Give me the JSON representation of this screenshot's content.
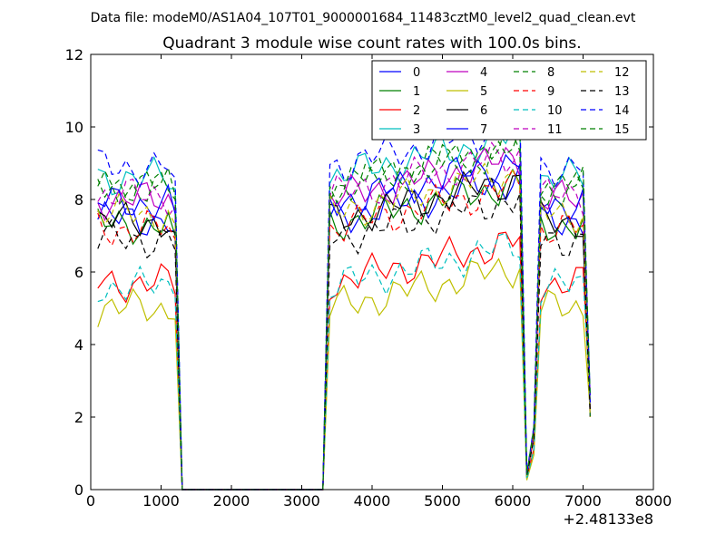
{
  "suptitle": "Data file: modeM0/AS1A04_107T01_9000001684_11483cztM0_level2_quad_clean.evt",
  "chart_data": {
    "type": "line",
    "title": "Quadrant 3 module wise count rates with 100.0s bins.",
    "xlabel": "",
    "ylabel": "",
    "x_offset_label": "+2.48133e8",
    "xlim": [
      0,
      8000
    ],
    "ylim": [
      0,
      12
    ],
    "x_ticks": [
      0,
      1000,
      2000,
      3000,
      4000,
      5000,
      6000,
      7000,
      8000
    ],
    "y_ticks": [
      0,
      2,
      4,
      6,
      8,
      10,
      12
    ],
    "x_tick_labels": [
      "0",
      "1000",
      "2000",
      "3000",
      "4000",
      "5000",
      "6000",
      "7000",
      "8000"
    ],
    "y_tick_labels": [
      "0",
      "2",
      "4",
      "6",
      "8",
      "10",
      "12"
    ],
    "legend_location": "top-right",
    "x_range": {
      "start": 100,
      "end": 7100,
      "step": 100
    },
    "grid": false,
    "series": [
      {
        "name": "0",
        "color": "#0000ff",
        "dash": "solid",
        "level": 7.45
      },
      {
        "name": "1",
        "color": "#008000",
        "dash": "solid",
        "level": 7.3
      },
      {
        "name": "2",
        "color": "#ff0000",
        "dash": "solid",
        "level": 5.7
      },
      {
        "name": "3",
        "color": "#00bfbf",
        "dash": "solid",
        "level": 8.6
      },
      {
        "name": "4",
        "color": "#bf00bf",
        "dash": "solid",
        "level": 8.0
      },
      {
        "name": "5",
        "color": "#bfbf00",
        "dash": "solid",
        "level": 5.0
      },
      {
        "name": "6",
        "color": "#000000",
        "dash": "solid",
        "level": 7.4
      },
      {
        "name": "7",
        "color": "#0000ff",
        "dash": "solid",
        "level": 7.9
      },
      {
        "name": "8",
        "color": "#008000",
        "dash": "dashed",
        "level": 8.3
      },
      {
        "name": "9",
        "color": "#ff0000",
        "dash": "dashed",
        "level": 7.2
      },
      {
        "name": "10",
        "color": "#00bfbf",
        "dash": "dashed",
        "level": 5.6
      },
      {
        "name": "11",
        "color": "#bf00bf",
        "dash": "dashed",
        "level": 8.1
      },
      {
        "name": "12",
        "color": "#bfbf00",
        "dash": "dashed",
        "level": 7.6
      },
      {
        "name": "13",
        "color": "#000000",
        "dash": "dashed",
        "level": 6.9
      },
      {
        "name": "14",
        "color": "#0000ff",
        "dash": "dashed",
        "level": 8.9
      },
      {
        "name": "15",
        "color": "#008000",
        "dash": "dashed",
        "level": 8.4
      }
    ]
  }
}
